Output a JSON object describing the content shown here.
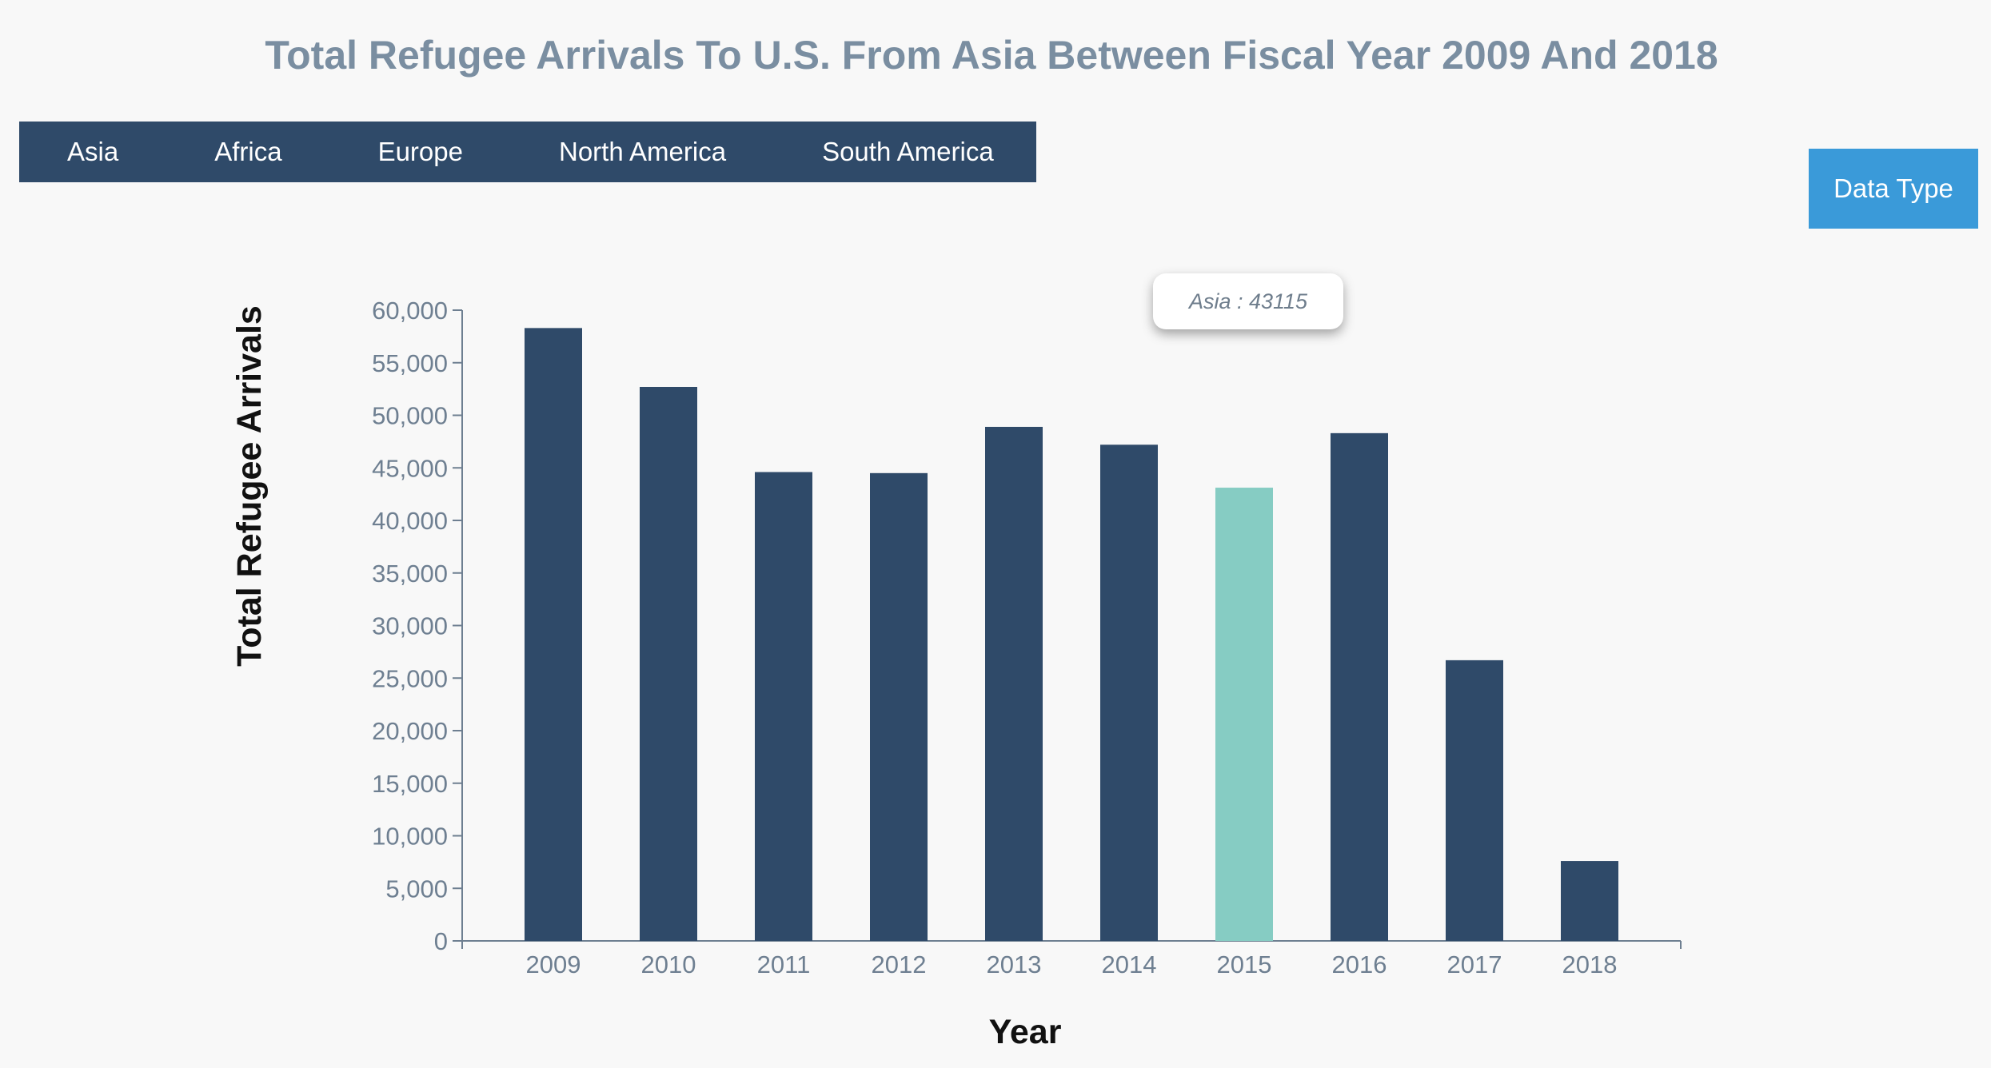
{
  "title": "Total Refugee Arrivals To U.S. From Asia Between Fiscal Year 2009 And 2018",
  "nav": {
    "items": [
      {
        "label": "Asia"
      },
      {
        "label": "Africa"
      },
      {
        "label": "Europe"
      },
      {
        "label": "North America"
      },
      {
        "label": "South America"
      }
    ]
  },
  "data_type_button": "Data Type",
  "tooltip": "Asia : 43115",
  "colors": {
    "bar": "#2f4a69",
    "highlight": "#86ccc3",
    "axis": "#6e7f91"
  },
  "chart_data": {
    "type": "bar",
    "categories": [
      "2009",
      "2010",
      "2011",
      "2012",
      "2013",
      "2014",
      "2015",
      "2016",
      "2017",
      "2018"
    ],
    "values": [
      58300,
      52700,
      44600,
      44500,
      48900,
      47200,
      43115,
      48300,
      26700,
      7600
    ],
    "highlighted_category": "2015",
    "xlabel": "Year",
    "ylabel": "Total Refugee Arrivals",
    "ylim": [
      0,
      60000
    ],
    "yticks": [
      0,
      5000,
      10000,
      15000,
      20000,
      25000,
      30000,
      35000,
      40000,
      45000,
      50000,
      55000,
      60000
    ],
    "ytick_labels": [
      "0",
      "5,000",
      "10,000",
      "15,000",
      "20,000",
      "25,000",
      "30,000",
      "35,000",
      "40,000",
      "45,000",
      "50,000",
      "55,000",
      "60,000"
    ],
    "grid": false
  }
}
